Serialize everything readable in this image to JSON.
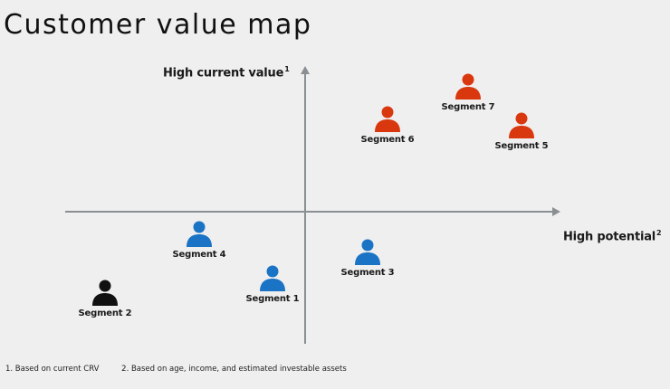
{
  "title": "Customer value map",
  "axes": {
    "y_label": "High current value",
    "y_sup": "1",
    "x_label": "High potential",
    "x_sup": "2"
  },
  "colors": {
    "high_value": "#d9380e",
    "mid_value": "#1b73c5",
    "low_value": "#111111",
    "axis": "#8a8f93"
  },
  "segments": [
    {
      "label": "Segment 7",
      "color": "#d9380e"
    },
    {
      "label": "Segment 6",
      "color": "#d9380e"
    },
    {
      "label": "Segment 5",
      "color": "#d9380e"
    },
    {
      "label": "Segment 4",
      "color": "#1b73c5"
    },
    {
      "label": "Segment 3",
      "color": "#1b73c5"
    },
    {
      "label": "Segment 1",
      "color": "#1b73c5"
    },
    {
      "label": "Segment 2",
      "color": "#111111"
    }
  ],
  "icon": "person-icon",
  "footnotes": [
    "1. Based on current CRV",
    "2. Based on age, income, and estimated investable assets"
  ]
}
